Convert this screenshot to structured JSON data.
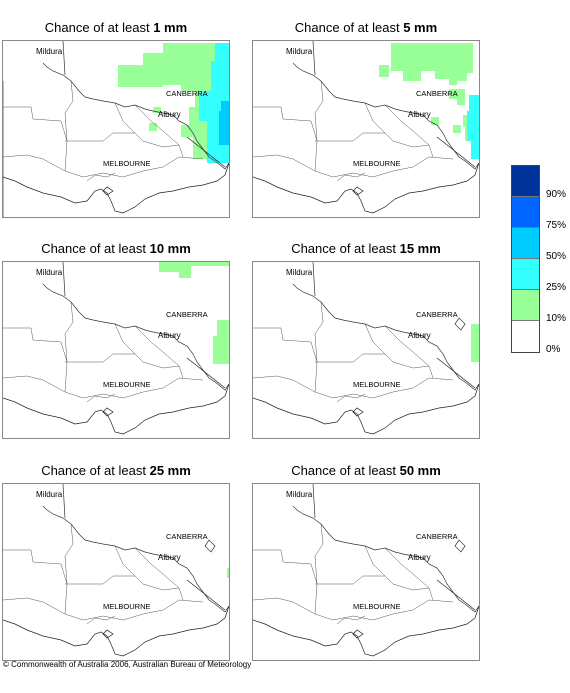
{
  "panels": [
    {
      "title_prefix": "Chance of at least",
      "threshold": "1 mm"
    },
    {
      "title_prefix": "Chance of at least",
      "threshold": "5 mm"
    },
    {
      "title_prefix": "Chance of at least",
      "threshold": "10 mm"
    },
    {
      "title_prefix": "Chance of at least",
      "threshold": "15 mm"
    },
    {
      "title_prefix": "Chance of at least",
      "threshold": "25 mm"
    },
    {
      "title_prefix": "Chance of at least",
      "threshold": "50 mm"
    }
  ],
  "places": {
    "mildura": "Mildura",
    "canberra": "CANBERRA",
    "albury": "Albury",
    "melbourne": "MELBOURNE"
  },
  "legend": {
    "ticks": [
      "90%",
      "75%",
      "50%",
      "25%",
      "10%",
      "0%"
    ],
    "colors": [
      "#003399",
      "#0066ff",
      "#00ccff",
      "#33ffff",
      "#99ff99",
      "#ffffff"
    ]
  },
  "copyright": "© Commonwealth of Australia 2006, Australian Bureau of Meteorology"
}
